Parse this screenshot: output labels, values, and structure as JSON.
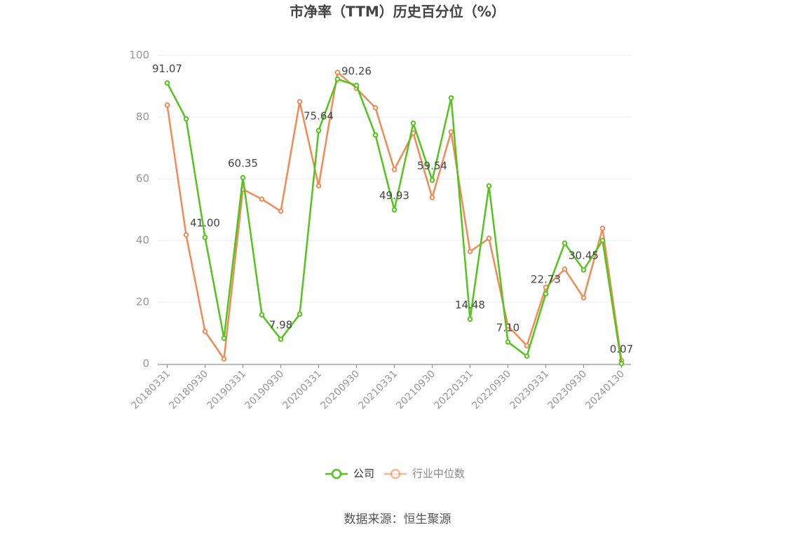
{
  "chart_data": {
    "type": "line",
    "title": "市净率（TTM）历史百分位（%）",
    "categories": [
      "20180331",
      null,
      "20180930",
      null,
      "20190331",
      null,
      "20190930",
      null,
      "20200331",
      null,
      "20200930",
      null,
      "20210331",
      null,
      "20210930",
      null,
      "20220331",
      null,
      "20220930",
      null,
      "20230331",
      null,
      "20230930",
      null,
      "20240130"
    ],
    "series": [
      {
        "name": "公司",
        "color": "#52c41a",
        "values": [
          91.07,
          79.4,
          41.0,
          8.3,
          60.35,
          15.9,
          7.98,
          16.1,
          75.64,
          92.3,
          90.26,
          74.2,
          49.93,
          78.0,
          59.54,
          86.2,
          14.48,
          57.7,
          7.1,
          2.5,
          22.73,
          39.1,
          30.45,
          40.0,
          0.07
        ],
        "value_labels": [
          "91.07",
          null,
          "41.00",
          null,
          "60.35",
          null,
          "7.98",
          null,
          "75.64",
          null,
          "90.26",
          null,
          "49.93",
          null,
          "59.54",
          null,
          "14.48",
          null,
          "7.10",
          null,
          "22.73",
          null,
          "30.45",
          null,
          "0.07"
        ]
      },
      {
        "name": "行业中位数",
        "color": "#f28a55",
        "values": [
          83.9,
          41.8,
          10.5,
          1.6,
          56.6,
          53.4,
          49.5,
          85.0,
          57.7,
          94.5,
          89.3,
          83.0,
          63.0,
          74.8,
          53.9,
          75.2,
          36.4,
          40.7,
          12.3,
          5.9,
          24.8,
          30.7,
          21.4,
          43.9,
          1.1
        ]
      }
    ],
    "ylim": [
      0,
      100
    ],
    "yticks": [
      0,
      20,
      40,
      60,
      80,
      100
    ],
    "grid": true,
    "source": "数据来源：恒生聚源"
  }
}
